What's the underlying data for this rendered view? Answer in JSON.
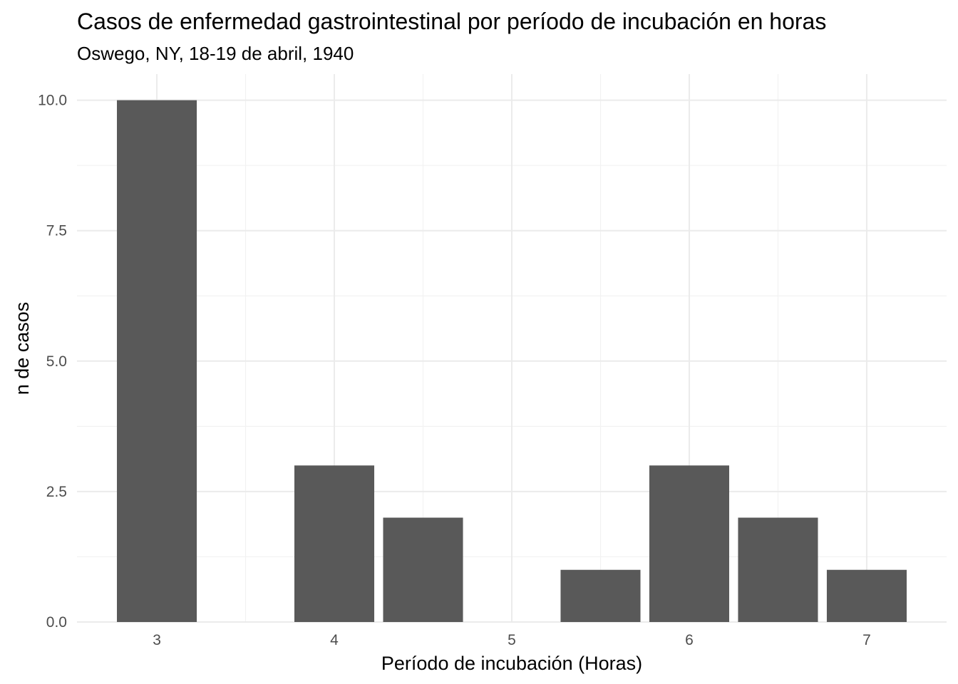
{
  "chart_data": {
    "type": "bar",
    "title": "Casos de enfermedad gastrointestinal por período de incubación en horas",
    "subtitle": "Oswego, NY, 18-19 de abril, 1940",
    "xlabel": "Período de incubación (Horas)",
    "ylabel": "n de casos",
    "x": [
      3,
      4,
      4.5,
      5.5,
      6,
      6.5,
      7
    ],
    "values": [
      10,
      3,
      2,
      1,
      3,
      2,
      1
    ],
    "bar_width": 0.45,
    "xlim": [
      2.55,
      7.45
    ],
    "ylim": [
      0,
      10.5
    ],
    "x_ticks": [
      3,
      4,
      5,
      6,
      7
    ],
    "x_tick_labels": [
      "3",
      "4",
      "5",
      "6",
      "7"
    ],
    "x_minor_ticks": [
      3.5,
      4.5,
      5.5,
      6.5
    ],
    "y_ticks": [
      0,
      2.5,
      5,
      7.5,
      10
    ],
    "y_tick_labels": [
      "0.0",
      "2.5",
      "5.0",
      "7.5",
      "10.0"
    ],
    "y_minor_ticks": [
      1.25,
      3.75,
      6.25,
      8.75
    ],
    "grid": true,
    "legend": "none",
    "bar_color": "#595959"
  }
}
